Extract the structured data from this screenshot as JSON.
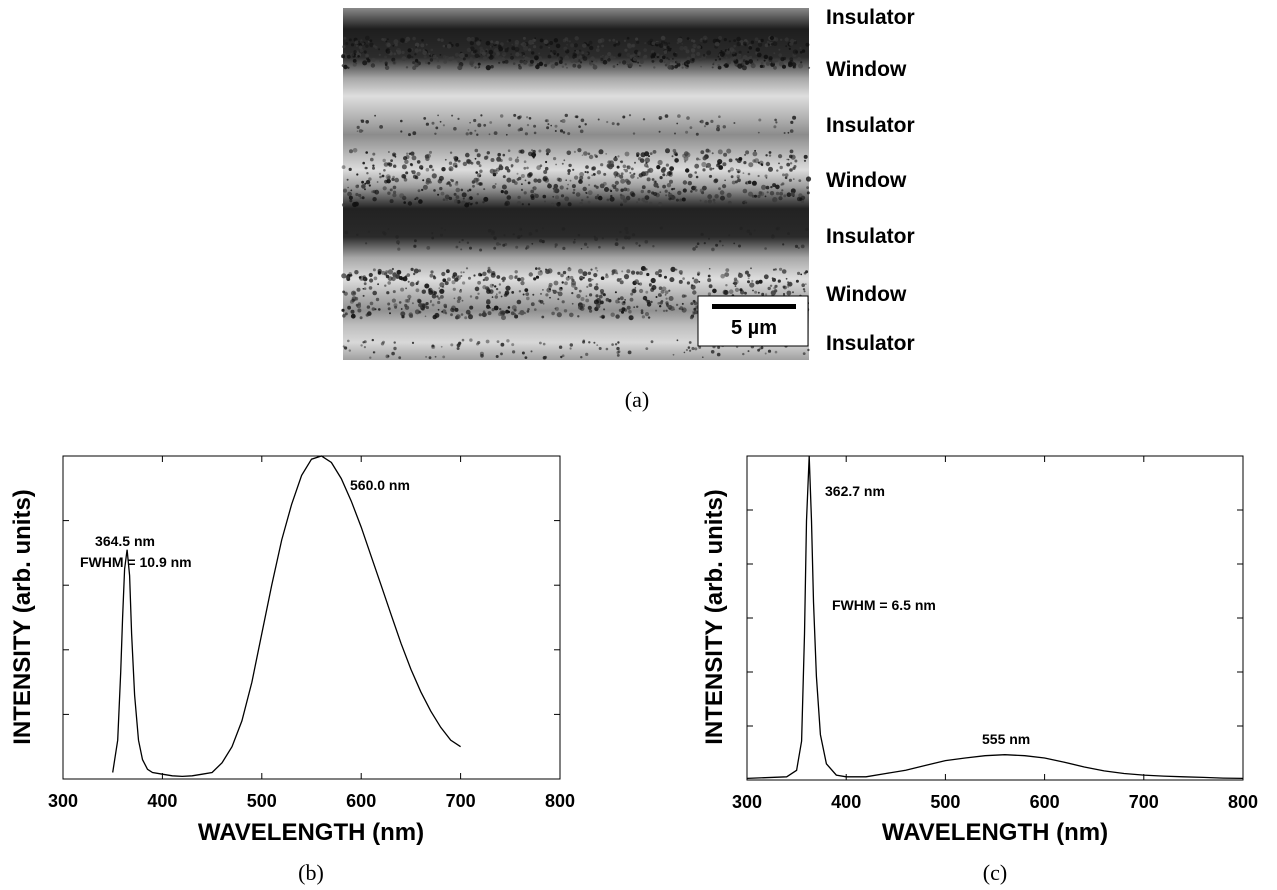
{
  "micrograph": {
    "band_labels": [
      "Insulator",
      "Window",
      "Insulator",
      "Window",
      "Insulator",
      "Window",
      "Insulator"
    ],
    "scale_bar_label": "5 µm",
    "caption": "(a)"
  },
  "chart_data": [
    {
      "type": "line",
      "caption": "(b)",
      "xlabel": "WAVELENGTH (nm)",
      "ylabel": "INTENSITY (arb. units)",
      "xlim": [
        300,
        800
      ],
      "ylim": [
        0,
        1
      ],
      "x_ticks": [
        300,
        400,
        500,
        600,
        700,
        800
      ],
      "y_tick_count": 5,
      "series": [
        {
          "x": [
            350,
            355,
            358,
            360,
            362,
            364.5,
            367,
            369,
            372,
            376,
            380,
            385,
            390,
            400,
            410,
            420,
            430,
            440,
            450,
            460,
            470,
            480,
            490,
            500,
            510,
            520,
            530,
            540,
            550,
            560,
            570,
            580,
            590,
            600,
            610,
            620,
            630,
            640,
            650,
            660,
            670,
            680,
            690,
            700
          ],
          "y": [
            0.02,
            0.12,
            0.33,
            0.5,
            0.65,
            0.71,
            0.63,
            0.45,
            0.26,
            0.12,
            0.06,
            0.03,
            0.02,
            0.015,
            0.01,
            0.008,
            0.01,
            0.015,
            0.02,
            0.05,
            0.1,
            0.18,
            0.3,
            0.45,
            0.6,
            0.74,
            0.85,
            0.94,
            0.99,
            1.0,
            0.98,
            0.93,
            0.86,
            0.78,
            0.69,
            0.6,
            0.51,
            0.42,
            0.34,
            0.27,
            0.21,
            0.16,
            0.12,
            0.1
          ]
        }
      ],
      "annotations": [
        "364.5 nm",
        "FWHM = 10.9 nm",
        "560.0 nm"
      ]
    },
    {
      "type": "line",
      "caption": "(c)",
      "xlabel": "WAVELENGTH (nm)",
      "ylabel": "INTENSITY (arb. units)",
      "xlim": [
        300,
        800
      ],
      "ylim": [
        0,
        1
      ],
      "x_ticks": [
        300,
        400,
        500,
        600,
        700,
        800
      ],
      "y_tick_count": 6,
      "series": [
        {
          "x": [
            300,
            340,
            350,
            355,
            358,
            360,
            362.7,
            365,
            367,
            370,
            374,
            380,
            390,
            400,
            420,
            440,
            460,
            480,
            500,
            520,
            540,
            560,
            580,
            600,
            620,
            640,
            660,
            680,
            700,
            720,
            740,
            760,
            780,
            800
          ],
          "y": [
            0.005,
            0.01,
            0.03,
            0.12,
            0.45,
            0.8,
            1.0,
            0.8,
            0.55,
            0.32,
            0.14,
            0.05,
            0.015,
            0.01,
            0.01,
            0.02,
            0.03,
            0.045,
            0.06,
            0.068,
            0.075,
            0.078,
            0.075,
            0.068,
            0.055,
            0.04,
            0.028,
            0.02,
            0.015,
            0.012,
            0.01,
            0.008,
            0.006,
            0.005
          ]
        }
      ],
      "annotations": [
        "362.7 nm",
        "FWHM = 6.5 nm",
        "555 nm"
      ]
    }
  ]
}
